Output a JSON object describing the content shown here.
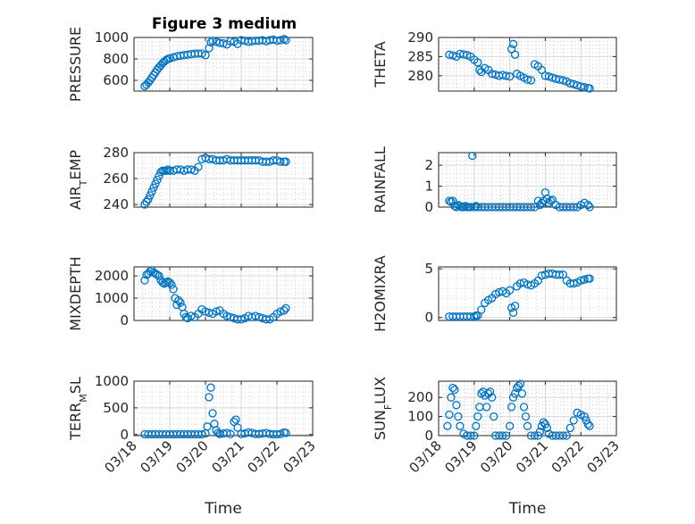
{
  "figure": {
    "title": "Figure 3 medium",
    "marker_color": "#0072BD"
  },
  "chart_data": [
    {
      "type": "scatter",
      "ylabel": "PRESSURE",
      "xlabel": "",
      "xlim": [
        "03/18",
        "03/23"
      ],
      "ylim": [
        500,
        1000
      ],
      "yticks": [
        600,
        800,
        1000
      ],
      "ytick_labels": [
        "600",
        "800",
        "1000"
      ],
      "xticks": [
        "03/18",
        "03/19",
        "03/20",
        "03/21",
        "03/22",
        "03/23"
      ],
      "show_xtick_labels": false,
      "x": [
        18.3,
        18.35,
        18.4,
        18.45,
        18.5,
        18.55,
        18.6,
        18.65,
        18.7,
        18.75,
        18.8,
        18.85,
        18.9,
        18.95,
        19.0,
        19.1,
        19.2,
        19.3,
        19.4,
        19.5,
        19.6,
        19.7,
        19.8,
        19.9,
        20.0,
        20.1,
        20.15,
        20.2,
        20.3,
        20.4,
        20.5,
        20.6,
        20.7,
        20.8,
        20.9,
        21.0,
        21.1,
        21.2,
        21.3,
        21.4,
        21.5,
        21.6,
        21.7,
        21.8,
        21.9,
        22.0,
        22.1,
        22.2,
        22.25
      ],
      "y": [
        545,
        560,
        580,
        600,
        625,
        650,
        675,
        700,
        720,
        740,
        760,
        775,
        790,
        800,
        805,
        815,
        825,
        830,
        835,
        840,
        845,
        848,
        850,
        850,
        835,
        900,
        955,
        970,
        960,
        950,
        945,
        935,
        965,
        960,
        940,
        975,
        970,
        960,
        965,
        970,
        970,
        975,
        965,
        975,
        980,
        970,
        975,
        985,
        975
      ]
    },
    {
      "type": "scatter",
      "ylabel": "THETA",
      "xlabel": "",
      "xlim": [
        "03/18",
        "03/23"
      ],
      "ylim": [
        276,
        290
      ],
      "yticks": [
        280,
        285,
        290
      ],
      "ytick_labels": [
        "280",
        "285",
        "290"
      ],
      "xticks": [
        "03/18",
        "03/19",
        "03/20",
        "03/21",
        "03/22",
        "03/23"
      ],
      "show_xtick_labels": false,
      "x": [
        18.3,
        18.4,
        18.5,
        18.6,
        18.7,
        18.8,
        18.9,
        19.0,
        19.1,
        19.15,
        19.2,
        19.3,
        19.4,
        19.5,
        19.6,
        19.7,
        19.8,
        19.9,
        20.0,
        20.05,
        20.1,
        20.15,
        20.2,
        20.3,
        20.4,
        20.5,
        20.6,
        20.7,
        20.8,
        20.9,
        21.0,
        21.1,
        21.2,
        21.3,
        21.4,
        21.5,
        21.6,
        21.7,
        21.8,
        21.9,
        22.0,
        22.1,
        22.2,
        22.25
      ],
      "y": [
        285.5,
        285.3,
        285.0,
        285.7,
        285.6,
        285.4,
        285.0,
        284.2,
        283.5,
        281.5,
        281.0,
        282.0,
        281.5,
        280.5,
        280.3,
        280.0,
        280.2,
        280.0,
        279.8,
        287.0,
        288.3,
        285.5,
        280.5,
        280.0,
        279.5,
        279.0,
        278.8,
        283.0,
        282.5,
        281.5,
        280.0,
        279.8,
        279.5,
        279.2,
        279.0,
        278.8,
        278.5,
        278.0,
        277.8,
        277.5,
        277.2,
        277.0,
        276.8,
        276.7
      ]
    },
    {
      "type": "scatter",
      "ylabel": "AIR_TEMP",
      "xlabel": "",
      "xlim": [
        "03/18",
        "03/23"
      ],
      "ylim": [
        238,
        280
      ],
      "yticks": [
        240,
        260,
        280
      ],
      "ytick_labels": [
        "240",
        "260",
        "280"
      ],
      "xticks": [
        "03/18",
        "03/19",
        "03/20",
        "03/21",
        "03/22",
        "03/23"
      ],
      "show_xtick_labels": false,
      "x": [
        18.3,
        18.35,
        18.4,
        18.45,
        18.5,
        18.55,
        18.6,
        18.65,
        18.7,
        18.75,
        18.8,
        18.85,
        18.9,
        18.95,
        19.0,
        19.1,
        19.2,
        19.3,
        19.4,
        19.5,
        19.6,
        19.7,
        19.8,
        19.9,
        20.0,
        20.1,
        20.2,
        20.3,
        20.4,
        20.5,
        20.6,
        20.7,
        20.8,
        20.9,
        21.0,
        21.1,
        21.2,
        21.3,
        21.4,
        21.5,
        21.6,
        21.7,
        21.8,
        21.9,
        22.0,
        22.1,
        22.2,
        22.25
      ],
      "y": [
        240,
        242,
        244,
        247,
        250,
        253,
        256,
        259,
        262,
        265,
        266,
        266,
        266,
        267,
        266,
        266,
        267,
        267,
        266,
        267,
        267,
        266,
        269,
        275,
        276,
        275,
        275,
        274,
        274,
        274,
        275,
        274,
        274,
        274,
        274,
        274,
        274,
        274,
        274,
        274,
        273,
        273,
        273,
        274,
        274,
        273,
        273,
        273
      ]
    },
    {
      "type": "scatter",
      "ylabel": "RAINFALL",
      "xlabel": "",
      "xlim": [
        "03/18",
        "03/23"
      ],
      "ylim": [
        0,
        2.6
      ],
      "yticks": [
        0,
        1,
        2
      ],
      "ytick_labels": [
        "0",
        "1",
        "2"
      ],
      "xticks": [
        "03/18",
        "03/19",
        "03/20",
        "03/21",
        "03/22",
        "03/23"
      ],
      "show_xtick_labels": false,
      "x": [
        18.3,
        18.35,
        18.4,
        18.45,
        18.5,
        18.55,
        18.6,
        18.65,
        18.7,
        18.75,
        18.8,
        18.85,
        18.9,
        18.95,
        19.0,
        19.05,
        19.1,
        19.2,
        19.3,
        19.4,
        19.5,
        19.6,
        19.7,
        19.8,
        19.9,
        20.0,
        20.1,
        20.2,
        20.3,
        20.4,
        20.5,
        20.6,
        20.7,
        20.8,
        20.85,
        20.9,
        20.95,
        21.0,
        21.05,
        21.1,
        21.15,
        21.2,
        21.3,
        21.4,
        21.5,
        21.6,
        21.7,
        21.8,
        21.9,
        22.0,
        22.1,
        22.2,
        22.25
      ],
      "y": [
        0.3,
        0.25,
        0.3,
        0.05,
        0.0,
        0.1,
        0.05,
        0.0,
        0.0,
        0.05,
        0.0,
        0.0,
        0.0,
        2.45,
        0.0,
        0.05,
        0.0,
        0.0,
        0.0,
        0.0,
        0.0,
        0.0,
        0.0,
        0.0,
        0.0,
        0.0,
        0.0,
        0.0,
        0.0,
        0.0,
        0.0,
        0.0,
        0.0,
        0.3,
        0.1,
        0.2,
        0.3,
        0.7,
        0.4,
        0.2,
        0.3,
        0.35,
        0.1,
        0.0,
        0.0,
        0.0,
        0.0,
        0.0,
        0.0,
        0.1,
        0.2,
        0.1,
        0.0
      ]
    },
    {
      "type": "scatter",
      "ylabel": "MIXDEPTH",
      "xlabel": "",
      "xlim": [
        "03/18",
        "03/23"
      ],
      "ylim": [
        0,
        2400
      ],
      "yticks": [
        0,
        1000,
        2000
      ],
      "ytick_labels": [
        "0",
        "1000",
        "2000"
      ],
      "xticks": [
        "03/18",
        "03/19",
        "03/20",
        "03/21",
        "03/22",
        "03/23"
      ],
      "show_xtick_labels": false,
      "x": [
        18.3,
        18.35,
        18.4,
        18.45,
        18.5,
        18.55,
        18.6,
        18.65,
        18.7,
        18.75,
        18.8,
        18.85,
        18.9,
        18.95,
        19.0,
        19.05,
        19.1,
        19.15,
        19.2,
        19.25,
        19.3,
        19.35,
        19.4,
        19.45,
        19.5,
        19.6,
        19.7,
        19.8,
        19.9,
        20.0,
        20.1,
        20.2,
        20.3,
        20.4,
        20.5,
        20.6,
        20.7,
        20.8,
        20.9,
        21.0,
        21.1,
        21.2,
        21.3,
        21.4,
        21.5,
        21.6,
        21.7,
        21.8,
        21.9,
        22.0,
        22.1,
        22.2,
        22.25
      ],
      "y": [
        1800,
        2050,
        2100,
        2200,
        2250,
        2150,
        2100,
        2050,
        2000,
        1800,
        1700,
        1650,
        1700,
        1750,
        1700,
        1600,
        1400,
        1000,
        700,
        900,
        800,
        600,
        300,
        150,
        100,
        200,
        150,
        300,
        500,
        400,
        350,
        300,
        400,
        450,
        300,
        200,
        150,
        100,
        50,
        50,
        100,
        200,
        150,
        200,
        150,
        100,
        50,
        50,
        150,
        300,
        400,
        450,
        550
      ]
    },
    {
      "type": "scatter",
      "ylabel": "H2OMIXRA",
      "xlabel": "",
      "xlim": [
        "03/18",
        "03/23"
      ],
      "ylim": [
        -0.3,
        5.2
      ],
      "yticks": [
        0,
        5
      ],
      "ytick_labels": [
        "0",
        "5"
      ],
      "xticks": [
        "03/18",
        "03/19",
        "03/20",
        "03/21",
        "03/22",
        "03/23"
      ],
      "show_xtick_labels": false,
      "x": [
        18.3,
        18.4,
        18.5,
        18.6,
        18.7,
        18.8,
        18.9,
        19.0,
        19.05,
        19.1,
        19.2,
        19.3,
        19.4,
        19.5,
        19.6,
        19.7,
        19.8,
        19.9,
        20.0,
        20.05,
        20.1,
        20.15,
        20.2,
        20.3,
        20.4,
        20.5,
        20.6,
        20.7,
        20.8,
        20.9,
        21.0,
        21.1,
        21.2,
        21.3,
        21.4,
        21.5,
        21.6,
        21.7,
        21.8,
        21.9,
        22.0,
        22.1,
        22.2,
        22.25
      ],
      "y": [
        0.1,
        0.1,
        0.1,
        0.1,
        0.1,
        0.1,
        0.1,
        0.1,
        0.2,
        0.2,
        0.8,
        1.5,
        1.8,
        2.0,
        2.4,
        2.6,
        2.7,
        2.5,
        2.8,
        1.0,
        0.5,
        1.2,
        3.2,
        3.5,
        3.6,
        3.4,
        3.3,
        3.5,
        3.8,
        4.3,
        4.4,
        4.5,
        4.5,
        4.4,
        4.4,
        4.4,
        3.8,
        3.5,
        3.5,
        3.6,
        3.8,
        3.9,
        4.0,
        4.0
      ]
    },
    {
      "type": "scatter",
      "ylabel": "TERR_MSL",
      "xlabel": "Time",
      "xlim": [
        "03/18",
        "03/23"
      ],
      "ylim": [
        -20,
        1000
      ],
      "yticks": [
        0,
        500,
        1000
      ],
      "ytick_labels": [
        "0",
        "500",
        "1000"
      ],
      "xticks": [
        "03/18",
        "03/19",
        "03/20",
        "03/21",
        "03/22",
        "03/23"
      ],
      "show_xtick_labels": true,
      "x": [
        18.3,
        18.4,
        18.5,
        18.6,
        18.7,
        18.8,
        18.9,
        19.0,
        19.1,
        19.2,
        19.3,
        19.4,
        19.5,
        19.6,
        19.7,
        19.8,
        19.9,
        20.0,
        20.05,
        20.1,
        20.15,
        20.2,
        20.25,
        20.3,
        20.35,
        20.4,
        20.5,
        20.6,
        20.7,
        20.8,
        20.85,
        20.9,
        21.0,
        21.1,
        21.2,
        21.3,
        21.4,
        21.5,
        21.6,
        21.7,
        21.8,
        21.9,
        22.0,
        22.1,
        22.2,
        22.25
      ],
      "y": [
        5,
        5,
        5,
        5,
        5,
        5,
        5,
        5,
        5,
        5,
        5,
        5,
        5,
        5,
        5,
        5,
        5,
        20,
        150,
        700,
        880,
        400,
        200,
        80,
        30,
        10,
        20,
        30,
        10,
        240,
        280,
        130,
        10,
        20,
        40,
        30,
        10,
        10,
        20,
        30,
        10,
        5,
        5,
        10,
        40,
        30
      ]
    },
    {
      "type": "scatter",
      "ylabel": "SUN_FLUX",
      "xlabel": "Time",
      "xlim": [
        "03/18",
        "03/23"
      ],
      "ylim": [
        0,
        285
      ],
      "yticks": [
        0,
        100,
        200
      ],
      "ytick_labels": [
        "0",
        "100",
        "200"
      ],
      "xticks": [
        "03/18",
        "03/19",
        "03/20",
        "03/21",
        "03/22",
        "03/23"
      ],
      "show_xtick_labels": true,
      "x": [
        18.25,
        18.3,
        18.35,
        18.4,
        18.45,
        18.5,
        18.55,
        18.6,
        18.7,
        18.8,
        18.9,
        19.0,
        19.05,
        19.1,
        19.15,
        19.2,
        19.25,
        19.3,
        19.35,
        19.4,
        19.45,
        19.5,
        19.55,
        19.6,
        19.7,
        19.8,
        19.9,
        20.0,
        20.05,
        20.1,
        20.15,
        20.2,
        20.25,
        20.3,
        20.35,
        20.4,
        20.45,
        20.5,
        20.6,
        20.7,
        20.8,
        20.85,
        20.9,
        20.95,
        21.0,
        21.05,
        21.1,
        21.2,
        21.3,
        21.4,
        21.5,
        21.6,
        21.7,
        21.8,
        21.9,
        22.0,
        22.1,
        22.15,
        22.2,
        22.25
      ],
      "y": [
        50,
        110,
        200,
        250,
        240,
        160,
        100,
        50,
        10,
        0,
        0,
        0,
        50,
        100,
        150,
        220,
        230,
        210,
        150,
        220,
        230,
        200,
        100,
        0,
        0,
        0,
        0,
        50,
        150,
        200,
        220,
        250,
        260,
        270,
        220,
        150,
        100,
        50,
        0,
        0,
        0,
        20,
        50,
        70,
        60,
        40,
        10,
        0,
        0,
        0,
        0,
        0,
        40,
        80,
        120,
        110,
        100,
        80,
        60,
        50
      ]
    }
  ]
}
